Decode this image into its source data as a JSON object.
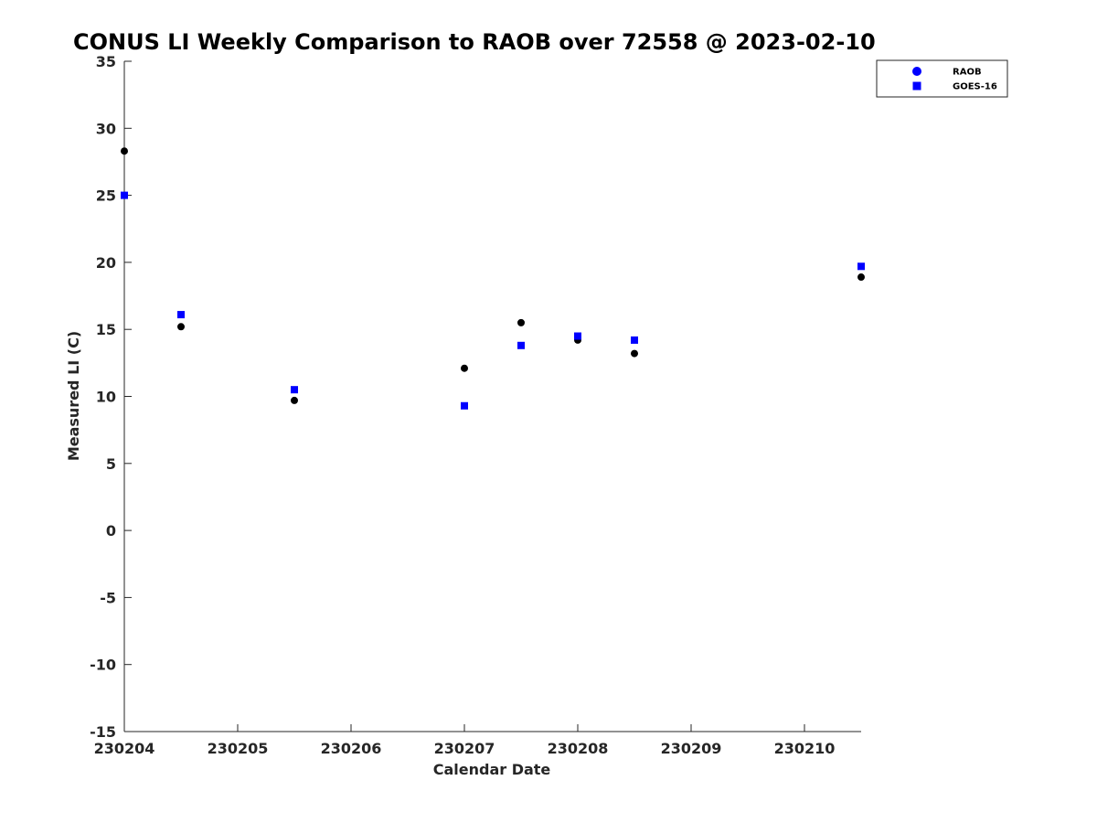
{
  "chart_data": {
    "type": "scatter",
    "title": "CONUS LI Weekly Comparison to RAOB over 72558 @ 2023-02-10",
    "xlabel": "Calendar Date",
    "ylabel": "Measured LI (C)",
    "xlim": [
      4,
      10.5
    ],
    "ylim": [
      -15,
      35
    ],
    "x_ticks": [
      4,
      5,
      6,
      7,
      8,
      9,
      10
    ],
    "x_tick_labels": [
      "230204",
      "230205",
      "230206",
      "230207",
      "230208",
      "230209",
      "230210"
    ],
    "y_ticks": [
      35,
      30,
      25,
      20,
      15,
      10,
      5,
      0,
      -5,
      -10,
      -15
    ],
    "grid": false,
    "legend_position": "top-right",
    "series": [
      {
        "name": "RAOB",
        "marker": "circle",
        "color": "#000000",
        "legend_color": "#0000ff",
        "x": [
          4.0,
          4.5,
          5.5,
          7.0,
          7.5,
          8.0,
          8.5,
          10.5
        ],
        "y": [
          28.3,
          15.2,
          9.7,
          12.1,
          15.5,
          14.2,
          13.2,
          18.9
        ]
      },
      {
        "name": "GOES-16",
        "marker": "square",
        "color": "#0000ff",
        "legend_color": "#0000ff",
        "x": [
          4.0,
          4.5,
          5.5,
          7.0,
          7.5,
          8.0,
          8.5,
          10.5
        ],
        "y": [
          25.0,
          16.1,
          10.5,
          9.3,
          13.8,
          14.5,
          14.2,
          19.7
        ]
      }
    ]
  }
}
